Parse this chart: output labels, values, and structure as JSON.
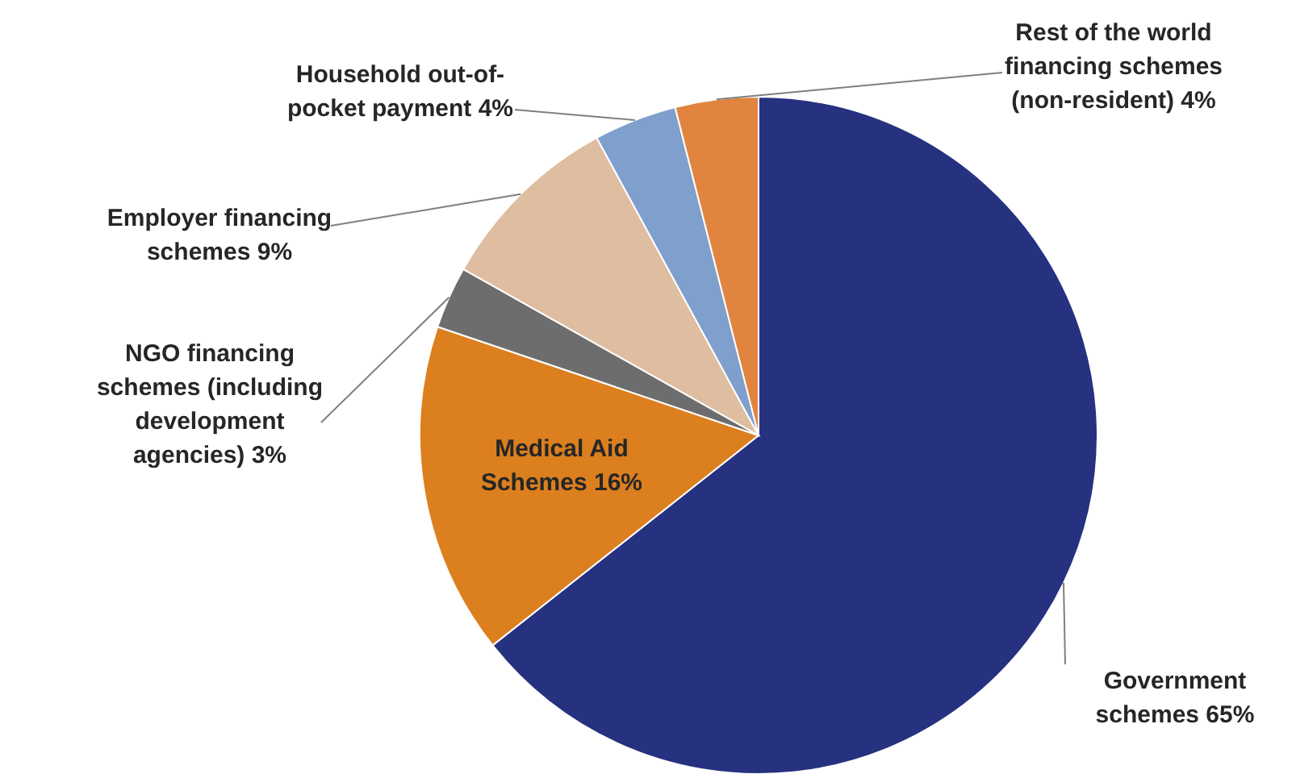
{
  "chart_data": {
    "type": "pie",
    "categories": [
      "Government schemes",
      "Medical Aid Schemes",
      "NGO financing schemes (including development agencies)",
      "Employer financing schemes",
      "Household out-of-pocket payment",
      "Rest of the world financing schemes (non-resident)"
    ],
    "values": [
      65,
      16,
      3,
      9,
      4,
      4
    ],
    "value_labels": [
      "65%",
      "16%",
      "3%",
      "9%",
      "4%",
      "4%"
    ],
    "colors": [
      "#263180",
      "#dc7f1e",
      "#6d6d6d",
      "#dfbda0",
      "#7f9fcc",
      "#e0843f"
    ]
  }
}
